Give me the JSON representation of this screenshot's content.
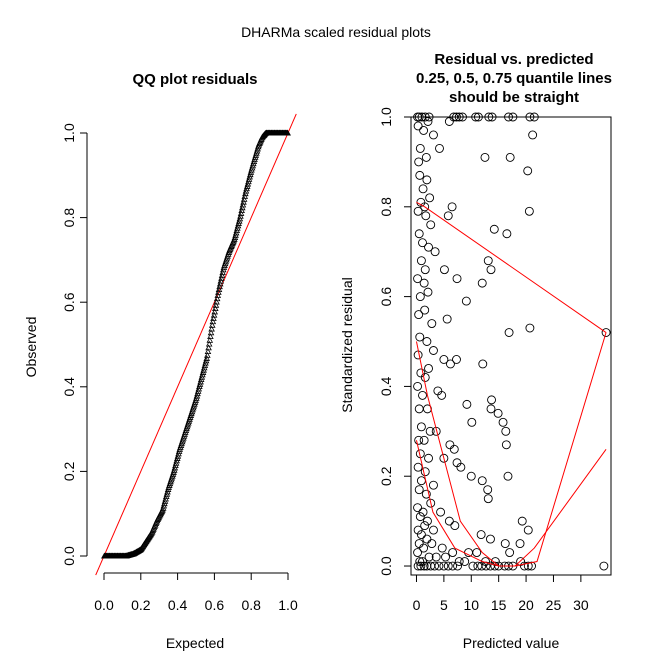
{
  "figure": {
    "super_title": "DHARMa scaled residual plots"
  },
  "chart_data": [
    {
      "type": "scatter",
      "title": "QQ plot residuals",
      "xlabel": "Expected",
      "ylabel": "Observed",
      "xlim": [
        0,
        1
      ],
      "ylim": [
        0,
        1
      ],
      "x_ticks": [
        "0.0",
        "0.2",
        "0.4",
        "0.6",
        "0.8",
        "1.0"
      ],
      "y_ticks": [
        "0.0",
        "0.2",
        "0.4",
        "0.6",
        "0.8",
        "1.0"
      ],
      "marker": "triangle",
      "reference_line": {
        "x": [
          0,
          1
        ],
        "y": [
          0,
          1
        ],
        "color": "#ff0000"
      },
      "curve": {
        "x": [
          0.0,
          0.04,
          0.08,
          0.12,
          0.16,
          0.2,
          0.23,
          0.26,
          0.29,
          0.32,
          0.35,
          0.38,
          0.41,
          0.44,
          0.47,
          0.5,
          0.53,
          0.56,
          0.59,
          0.62,
          0.65,
          0.68,
          0.71,
          0.74,
          0.77,
          0.8,
          0.82,
          0.84,
          0.86,
          0.88,
          0.9,
          0.93,
          0.96,
          1.0
        ],
        "y": [
          0.0,
          0.0,
          0.0,
          0.0,
          0.005,
          0.015,
          0.035,
          0.055,
          0.085,
          0.11,
          0.16,
          0.2,
          0.25,
          0.29,
          0.33,
          0.37,
          0.42,
          0.47,
          0.55,
          0.62,
          0.68,
          0.72,
          0.75,
          0.8,
          0.86,
          0.91,
          0.94,
          0.97,
          0.99,
          1.0,
          1.0,
          1.0,
          1.0,
          1.0
        ]
      },
      "n_points": 300
    },
    {
      "type": "scatter",
      "title_lines": [
        "Residual vs. predicted",
        "0.25, 0.5, 0.75 quantile lines",
        "should be straight"
      ],
      "xlabel": "Predicted value",
      "ylabel": "Standardized residual",
      "xlim": [
        -1,
        35.5
      ],
      "ylim": [
        -0.02,
        1.0
      ],
      "x_ticks": [
        "0",
        "5",
        "10",
        "15",
        "20",
        "25",
        "30"
      ],
      "y_ticks": [
        "0.0",
        "0.2",
        "0.4",
        "0.6",
        "0.8",
        "1.0"
      ],
      "marker": "circle",
      "points": [
        [
          0.2,
          1.0
        ],
        [
          0.5,
          1.0
        ],
        [
          1.0,
          1.0
        ],
        [
          1.6,
          1.0
        ],
        [
          2.3,
          1.0
        ],
        [
          6.8,
          1.0
        ],
        [
          7.3,
          1.0
        ],
        [
          7.8,
          1.0
        ],
        [
          8.4,
          1.0
        ],
        [
          10.8,
          1.0
        ],
        [
          11.3,
          1.0
        ],
        [
          13.2,
          1.0
        ],
        [
          13.8,
          1.0
        ],
        [
          16.8,
          1.0
        ],
        [
          17.6,
          1.0
        ],
        [
          20.7,
          1.0
        ],
        [
          21.5,
          1.0
        ],
        [
          0.3,
          0.98
        ],
        [
          1.3,
          0.97
        ],
        [
          2.1,
          0.99
        ],
        [
          3.1,
          0.96
        ],
        [
          6.0,
          0.99
        ],
        [
          21.2,
          0.96
        ],
        [
          0.7,
          0.93
        ],
        [
          4.2,
          0.93
        ],
        [
          0.4,
          0.9
        ],
        [
          1.8,
          0.91
        ],
        [
          12.5,
          0.91
        ],
        [
          17.1,
          0.91
        ],
        [
          20.3,
          0.88
        ],
        [
          0.6,
          0.87
        ],
        [
          1.9,
          0.86
        ],
        [
          1.2,
          0.84
        ],
        [
          2.4,
          0.82
        ],
        [
          0.8,
          0.81
        ],
        [
          1.5,
          0.8
        ],
        [
          0.3,
          0.79
        ],
        [
          1.7,
          0.78
        ],
        [
          6.5,
          0.8
        ],
        [
          5.8,
          0.78
        ],
        [
          2.6,
          0.76
        ],
        [
          20.6,
          0.79
        ],
        [
          14.2,
          0.75
        ],
        [
          16.5,
          0.74
        ],
        [
          0.5,
          0.74
        ],
        [
          1.1,
          0.72
        ],
        [
          2.2,
          0.71
        ],
        [
          3.4,
          0.7
        ],
        [
          0.9,
          0.68
        ],
        [
          1.6,
          0.66
        ],
        [
          5.1,
          0.66
        ],
        [
          13.1,
          0.68
        ],
        [
          13.6,
          0.66
        ],
        [
          7.4,
          0.64
        ],
        [
          0.2,
          0.64
        ],
        [
          1.4,
          0.63
        ],
        [
          12.0,
          0.63
        ],
        [
          0.7,
          0.6
        ],
        [
          2.1,
          0.61
        ],
        [
          9.1,
          0.59
        ],
        [
          5.6,
          0.55
        ],
        [
          1.5,
          0.57
        ],
        [
          0.4,
          0.56
        ],
        [
          2.8,
          0.54
        ],
        [
          16.9,
          0.52
        ],
        [
          20.7,
          0.53
        ],
        [
          34.6,
          0.52
        ],
        [
          0.6,
          0.51
        ],
        [
          1.9,
          0.5
        ],
        [
          3.1,
          0.48
        ],
        [
          0.3,
          0.47
        ],
        [
          5.0,
          0.46
        ],
        [
          6.2,
          0.45
        ],
        [
          7.3,
          0.46
        ],
        [
          12.1,
          0.45
        ],
        [
          2.2,
          0.44
        ],
        [
          0.8,
          0.43
        ],
        [
          1.6,
          0.42
        ],
        [
          0.2,
          0.4
        ],
        [
          3.9,
          0.39
        ],
        [
          4.6,
          0.38
        ],
        [
          1.1,
          0.38
        ],
        [
          13.7,
          0.37
        ],
        [
          13.6,
          0.35
        ],
        [
          9.2,
          0.36
        ],
        [
          2.0,
          0.35
        ],
        [
          0.5,
          0.35
        ],
        [
          14.9,
          0.34
        ],
        [
          15.8,
          0.32
        ],
        [
          10.1,
          0.32
        ],
        [
          0.9,
          0.31
        ],
        [
          2.5,
          0.3
        ],
        [
          3.6,
          0.3
        ],
        [
          16.3,
          0.3
        ],
        [
          0.4,
          0.28
        ],
        [
          1.4,
          0.28
        ],
        [
          6.1,
          0.27
        ],
        [
          16.4,
          0.27
        ],
        [
          6.9,
          0.26
        ],
        [
          0.7,
          0.25
        ],
        [
          5.0,
          0.24
        ],
        [
          2.2,
          0.24
        ],
        [
          7.4,
          0.23
        ],
        [
          0.3,
          0.22
        ],
        [
          1.6,
          0.21
        ],
        [
          8.1,
          0.22
        ],
        [
          10.0,
          0.2
        ],
        [
          12.0,
          0.19
        ],
        [
          16.7,
          0.2
        ],
        [
          0.9,
          0.19
        ],
        [
          3.1,
          0.18
        ],
        [
          13.0,
          0.17
        ],
        [
          0.5,
          0.17
        ],
        [
          1.8,
          0.16
        ],
        [
          13.1,
          0.15
        ],
        [
          2.6,
          0.14
        ],
        [
          0.2,
          0.13
        ],
        [
          1.2,
          0.12
        ],
        [
          4.4,
          0.12
        ],
        [
          0.7,
          0.11
        ],
        [
          2.0,
          0.1
        ],
        [
          6.0,
          0.1
        ],
        [
          7.0,
          0.09
        ],
        [
          1.5,
          0.09
        ],
        [
          0.3,
          0.08
        ],
        [
          3.1,
          0.08
        ],
        [
          19.3,
          0.1
        ],
        [
          20.4,
          0.08
        ],
        [
          0.9,
          0.07
        ],
        [
          1.9,
          0.06
        ],
        [
          11.8,
          0.07
        ],
        [
          13.5,
          0.06
        ],
        [
          2.8,
          0.05
        ],
        [
          0.5,
          0.05
        ],
        [
          16.2,
          0.05
        ],
        [
          18.9,
          0.05
        ],
        [
          1.3,
          0.04
        ],
        [
          4.7,
          0.04
        ],
        [
          0.2,
          0.03
        ],
        [
          6.6,
          0.03
        ],
        [
          9.5,
          0.03
        ],
        [
          11.0,
          0.03
        ],
        [
          17.0,
          0.03
        ],
        [
          2.3,
          0.02
        ],
        [
          3.6,
          0.02
        ],
        [
          5.3,
          0.02
        ],
        [
          0.6,
          0.01
        ],
        [
          1.1,
          0.01
        ],
        [
          7.8,
          0.01
        ],
        [
          8.8,
          0.01
        ],
        [
          12.6,
          0.01
        ],
        [
          14.4,
          0.01
        ],
        [
          19.0,
          0.01
        ],
        [
          0.3,
          0.0
        ],
        [
          0.8,
          0.0
        ],
        [
          1.4,
          0.0
        ],
        [
          1.9,
          0.0
        ],
        [
          2.6,
          0.0
        ],
        [
          3.3,
          0.0
        ],
        [
          4.1,
          0.0
        ],
        [
          5.0,
          0.0
        ],
        [
          5.8,
          0.0
        ],
        [
          6.6,
          0.0
        ],
        [
          7.5,
          0.0
        ],
        [
          10.3,
          0.0
        ],
        [
          11.2,
          0.0
        ],
        [
          11.9,
          0.0
        ],
        [
          12.7,
          0.0
        ],
        [
          13.5,
          0.0
        ],
        [
          14.3,
          0.0
        ],
        [
          15.0,
          0.0
        ],
        [
          16.1,
          0.0
        ],
        [
          16.8,
          0.0
        ],
        [
          17.6,
          0.0
        ],
        [
          19.7,
          0.0
        ],
        [
          20.4,
          0.0
        ],
        [
          21.0,
          0.0
        ],
        [
          34.2,
          0.0
        ]
      ],
      "quantile_lines": [
        {
          "quantile": 0.25,
          "x": [
            0,
            3,
            7,
            12,
            15,
            18,
            21.5,
            34.6
          ],
          "y": [
            0.28,
            0.12,
            0.04,
            0.01,
            0.0,
            0.0,
            0.04,
            0.26
          ],
          "color": "#ff0000"
        },
        {
          "quantile": 0.5,
          "x": [
            0,
            2,
            5,
            8,
            12,
            15,
            18,
            22,
            34.6
          ],
          "y": [
            0.5,
            0.38,
            0.24,
            0.1,
            0.03,
            0.0,
            0.0,
            0.01,
            0.52
          ],
          "color": "#ff0000"
        },
        {
          "quantile": 0.75,
          "x": [
            0,
            1.5,
            34.6
          ],
          "y": [
            0.81,
            0.8,
            0.52
          ],
          "color": "#ff0000"
        }
      ]
    }
  ]
}
